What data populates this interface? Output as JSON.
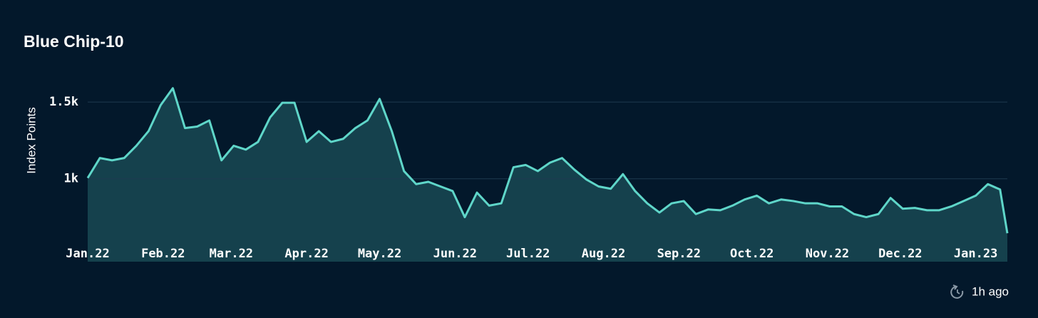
{
  "chart_data": {
    "type": "area",
    "title": "Blue Chip-10",
    "y_label": "Index Points",
    "updated": "1h ago",
    "color": "#5fd6c9",
    "fill": "#15414d",
    "grid": true,
    "xlim": [
      0,
      378
    ],
    "ylim": [
      460,
      1700
    ],
    "yticks": [
      {
        "value": 1000,
        "label": "1k"
      },
      {
        "value": 1500,
        "label": "1.5k"
      }
    ],
    "xticks": [
      {
        "value": 0,
        "label": "Jan.22"
      },
      {
        "value": 31,
        "label": "Feb.22"
      },
      {
        "value": 59,
        "label": "Mar.22"
      },
      {
        "value": 90,
        "label": "Apr.22"
      },
      {
        "value": 120,
        "label": "May.22"
      },
      {
        "value": 151,
        "label": "Jun.22"
      },
      {
        "value": 181,
        "label": "Jul.22"
      },
      {
        "value": 212,
        "label": "Aug.22"
      },
      {
        "value": 243,
        "label": "Sep.22"
      },
      {
        "value": 273,
        "label": "Oct.22"
      },
      {
        "value": 304,
        "label": "Nov.22"
      },
      {
        "value": 334,
        "label": "Dec.22"
      },
      {
        "value": 365,
        "label": "Jan.23"
      }
    ],
    "x": [
      0,
      5,
      10,
      15,
      20,
      25,
      30,
      35,
      40,
      45,
      50,
      55,
      60,
      65,
      70,
      75,
      80,
      85,
      90,
      95,
      100,
      105,
      110,
      115,
      120,
      125,
      130,
      135,
      140,
      145,
      150,
      155,
      160,
      165,
      170,
      175,
      180,
      185,
      190,
      195,
      200,
      205,
      210,
      215,
      220,
      225,
      230,
      235,
      240,
      245,
      250,
      255,
      260,
      265,
      270,
      275,
      280,
      285,
      290,
      295,
      300,
      305,
      310,
      315,
      320,
      325,
      330,
      335,
      340,
      345,
      350,
      355,
      360,
      365,
      370,
      375,
      378
    ],
    "values": [
      1005,
      1135,
      1120,
      1135,
      1215,
      1310,
      1480,
      1590,
      1330,
      1340,
      1380,
      1120,
      1215,
      1190,
      1240,
      1400,
      1495,
      1495,
      1240,
      1310,
      1240,
      1260,
      1330,
      1380,
      1520,
      1310,
      1050,
      965,
      980,
      950,
      920,
      750,
      910,
      825,
      840,
      1075,
      1090,
      1050,
      1105,
      1135,
      1060,
      995,
      950,
      935,
      1030,
      920,
      840,
      780,
      840,
      855,
      770,
      800,
      795,
      825,
      865,
      890,
      840,
      865,
      855,
      840,
      840,
      820,
      820,
      770,
      750,
      770,
      875,
      805,
      810,
      795,
      795,
      820,
      855,
      890,
      965,
      930,
      645
    ]
  }
}
